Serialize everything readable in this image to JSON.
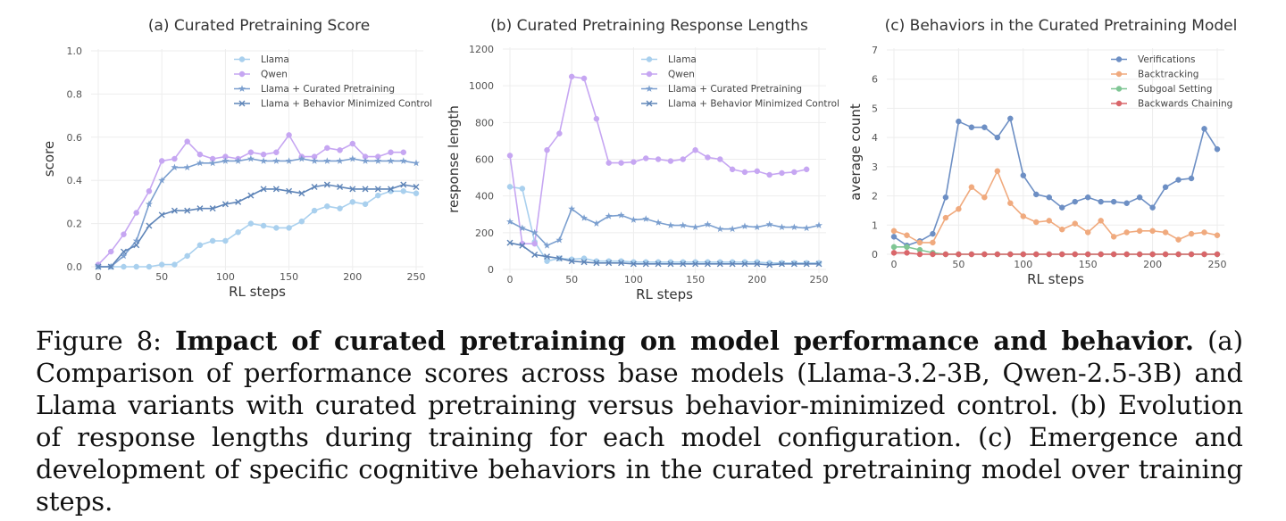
{
  "chart_data": [
    {
      "type": "line",
      "title": "(a) Curated Pretraining Score",
      "xlabel": "RL steps",
      "ylabel": "score",
      "xlim": [
        0,
        250
      ],
      "ylim": [
        0,
        1.0
      ],
      "xticks": [
        0,
        50,
        100,
        150,
        200,
        250
      ],
      "yticks": [
        0.0,
        0.2,
        0.4,
        0.6,
        0.8,
        1.0
      ],
      "ytick_labels": [
        "0.0",
        "0.2",
        "0.4",
        "0.6",
        "0.8",
        "1.0"
      ],
      "grid": true,
      "legend": "top-center",
      "x": [
        0,
        10,
        20,
        30,
        40,
        50,
        60,
        70,
        80,
        90,
        100,
        110,
        120,
        130,
        140,
        150,
        160,
        170,
        180,
        190,
        200,
        210,
        220,
        230,
        240,
        250
      ],
      "series": [
        {
          "name": "Llama",
          "marker": "circle",
          "color": "#a9d0ee",
          "values": [
            0.0,
            0.0,
            0.0,
            0.0,
            0.0,
            0.01,
            0.01,
            0.05,
            0.1,
            0.12,
            0.12,
            0.16,
            0.2,
            0.19,
            0.18,
            0.18,
            0.21,
            0.26,
            0.28,
            0.27,
            0.3,
            0.29,
            0.33,
            0.35,
            0.35,
            0.34
          ]
        },
        {
          "name": "Qwen",
          "marker": "circle",
          "color": "#c6a6f2",
          "values": [
            0.01,
            0.07,
            0.15,
            0.25,
            0.35,
            0.49,
            0.5,
            0.58,
            0.52,
            0.5,
            0.51,
            0.5,
            0.53,
            0.52,
            0.53,
            0.61,
            0.51,
            0.51,
            0.55,
            0.54,
            0.57,
            0.51,
            0.51,
            0.53,
            0.53,
            null
          ]
        },
        {
          "name": "Llama + Curated Pretraining",
          "marker": "star",
          "color": "#7b9fcf",
          "values": [
            0.0,
            0.0,
            0.05,
            0.12,
            0.29,
            0.4,
            0.46,
            0.46,
            0.48,
            0.48,
            0.49,
            0.49,
            0.5,
            0.49,
            0.49,
            0.49,
            0.5,
            0.49,
            0.49,
            0.49,
            0.5,
            0.49,
            0.49,
            0.49,
            0.49,
            0.48
          ]
        },
        {
          "name": "Llama + Behavior Minimized Control",
          "marker": "x",
          "color": "#5f85b8",
          "values": [
            0.0,
            0.0,
            0.07,
            0.1,
            0.19,
            0.24,
            0.26,
            0.26,
            0.27,
            0.27,
            0.29,
            0.3,
            0.33,
            0.36,
            0.36,
            0.35,
            0.34,
            0.37,
            0.38,
            0.37,
            0.36,
            0.36,
            0.36,
            0.36,
            0.38,
            0.37
          ]
        }
      ]
    },
    {
      "type": "line",
      "title": "(b) Curated Pretraining Response Lengths",
      "xlabel": "RL steps",
      "ylabel": "response length",
      "xlim": [
        0,
        250
      ],
      "ylim": [
        0,
        1200
      ],
      "xticks": [
        0,
        50,
        100,
        150,
        200,
        250
      ],
      "yticks": [
        0,
        200,
        400,
        600,
        800,
        1000,
        1200
      ],
      "ytick_labels": [
        "0",
        "200",
        "400",
        "600",
        "800",
        "1000",
        "1200"
      ],
      "grid": true,
      "legend": "top-right",
      "x": [
        0,
        10,
        20,
        30,
        40,
        50,
        60,
        70,
        80,
        90,
        100,
        110,
        120,
        130,
        140,
        150,
        160,
        170,
        180,
        190,
        200,
        210,
        220,
        230,
        240,
        250
      ],
      "series": [
        {
          "name": "Llama",
          "marker": "circle",
          "color": "#a9d0ee",
          "values": [
            450,
            440,
            150,
            45,
            60,
            55,
            60,
            45,
            45,
            45,
            40,
            40,
            40,
            40,
            40,
            40,
            40,
            40,
            40,
            40,
            40,
            35,
            35,
            35,
            35,
            35
          ]
        },
        {
          "name": "Qwen",
          "marker": "circle",
          "color": "#c6a6f2",
          "values": [
            620,
            140,
            140,
            650,
            740,
            1050,
            1040,
            820,
            580,
            580,
            585,
            605,
            600,
            590,
            600,
            650,
            610,
            600,
            545,
            530,
            535,
            515,
            525,
            530,
            545,
            null
          ]
        },
        {
          "name": "Llama + Curated Pretraining",
          "marker": "star",
          "color": "#7b9fcf",
          "values": [
            260,
            225,
            200,
            130,
            160,
            330,
            280,
            250,
            290,
            295,
            270,
            275,
            255,
            240,
            240,
            230,
            245,
            220,
            220,
            235,
            230,
            245,
            230,
            230,
            225,
            240
          ]
        },
        {
          "name": "Llama + Behavior Minimized Control",
          "marker": "x",
          "color": "#5f85b8",
          "values": [
            145,
            130,
            80,
            70,
            60,
            45,
            40,
            35,
            35,
            35,
            30,
            30,
            30,
            30,
            30,
            30,
            30,
            30,
            30,
            30,
            30,
            25,
            30,
            30,
            30,
            30
          ]
        }
      ]
    },
    {
      "type": "line",
      "title": "(c) Behaviors in the Curated Pretraining Model",
      "xlabel": "RL steps",
      "ylabel": "average count",
      "xlim": [
        0,
        250
      ],
      "ylim": [
        0,
        7
      ],
      "xticks": [
        0,
        50,
        100,
        150,
        200,
        250
      ],
      "yticks": [
        0,
        1,
        2,
        3,
        4,
        5,
        6,
        7
      ],
      "ytick_labels": [
        "0",
        "1",
        "2",
        "3",
        "4",
        "5",
        "6",
        "7"
      ],
      "grid": true,
      "legend": "top-right",
      "x": [
        0,
        10,
        20,
        30,
        40,
        50,
        60,
        70,
        80,
        90,
        100,
        110,
        120,
        130,
        140,
        150,
        160,
        170,
        180,
        190,
        200,
        210,
        220,
        230,
        240,
        250
      ],
      "series": [
        {
          "name": "Verifications",
          "marker": "circle",
          "color": "#6d8fc4",
          "values": [
            0.6,
            0.3,
            0.45,
            0.7,
            1.95,
            4.55,
            4.35,
            4.35,
            4.0,
            4.65,
            2.7,
            2.05,
            1.95,
            1.6,
            1.8,
            1.95,
            1.8,
            1.8,
            1.75,
            1.95,
            1.6,
            2.3,
            2.55,
            2.6,
            4.3,
            3.6
          ]
        },
        {
          "name": "Backtracking",
          "marker": "circle",
          "color": "#f0aa7e",
          "values": [
            0.8,
            0.65,
            0.4,
            0.4,
            1.25,
            1.55,
            2.3,
            1.95,
            2.85,
            1.75,
            1.3,
            1.1,
            1.15,
            0.85,
            1.05,
            0.75,
            1.15,
            0.6,
            0.75,
            0.8,
            0.8,
            0.75,
            0.5,
            0.7,
            0.75,
            0.65
          ]
        },
        {
          "name": "Subgoal Setting",
          "marker": "circle",
          "color": "#7fc694",
          "values": [
            0.25,
            0.25,
            0.15,
            0.05,
            0.0,
            0.0,
            0.0,
            0.0,
            0.0,
            0.0,
            0.0,
            0.0,
            0.0,
            0.0,
            0.0,
            0.0,
            0.0,
            0.0,
            0.0,
            0.0,
            0.0,
            0.0,
            0.0,
            0.0,
            0.0,
            0.0
          ]
        },
        {
          "name": "Backwards Chaining",
          "marker": "circle",
          "color": "#d9666a",
          "values": [
            0.05,
            0.05,
            0.0,
            0.0,
            0.0,
            0.0,
            0.0,
            0.0,
            0.0,
            0.0,
            0.0,
            0.0,
            0.0,
            0.0,
            0.0,
            0.0,
            0.0,
            0.0,
            0.0,
            0.0,
            0.0,
            0.0,
            0.0,
            0.0,
            0.0,
            0.0
          ]
        }
      ]
    }
  ],
  "caption": {
    "label": "Figure 8: ",
    "bold": "Impact of curated pretraining on model performance and behavior.",
    "text": " (a) Comparison of performance scores across base models (Llama-3.2-3B, Qwen-2.5-3B) and Llama variants with curated pretraining versus behavior-minimized control. (b) Evolution of response lengths during training for each model configuration. (c) Emergence and development of specific cognitive behaviors in the curated pretraining model over training steps."
  }
}
